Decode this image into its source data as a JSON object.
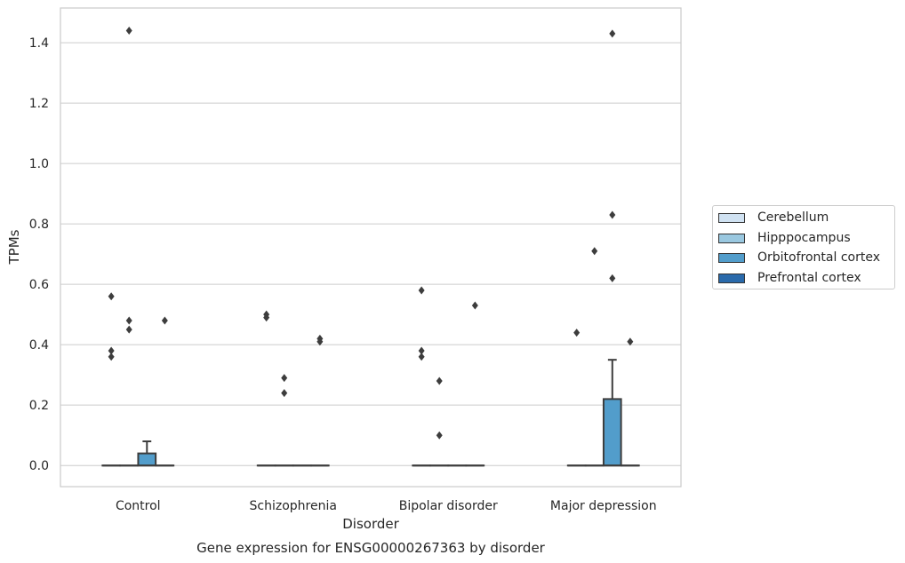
{
  "chart_data": {
    "type": "box",
    "title": "Gene expression for ENSG00000267363 by disorder",
    "xlabel": "Disorder",
    "ylabel": "TPMs",
    "ylim": [
      -0.07,
      1.515
    ],
    "yticks": [
      "0.0",
      "0.2",
      "0.4",
      "0.6",
      "0.8",
      "1.0",
      "1.2",
      "1.4"
    ],
    "ytick_values": [
      0.0,
      0.2,
      0.4,
      0.6,
      0.8,
      1.0,
      1.2,
      1.4
    ],
    "grid": true,
    "legend_placement": "center-right outside",
    "categories": [
      "Control",
      "Schizophrenia",
      "Bipolar disorder",
      "Major depression"
    ],
    "series": [
      {
        "name": "Cerebellum",
        "color": "#d0e2f2",
        "boxes": [
          {
            "q1": 0,
            "median": 0,
            "q3": 0,
            "whisker_low": 0,
            "whisker_high": 0,
            "outliers": [
              0.56,
              0.38,
              0.36
            ]
          },
          {
            "q1": 0,
            "median": 0,
            "q3": 0,
            "whisker_low": 0,
            "whisker_high": 0,
            "outliers": [
              0.5,
              0.49
            ]
          },
          {
            "q1": 0,
            "median": 0,
            "q3": 0,
            "whisker_low": 0,
            "whisker_high": 0,
            "outliers": [
              0.58,
              0.38,
              0.36
            ]
          },
          {
            "q1": 0,
            "median": 0,
            "q3": 0,
            "whisker_low": 0,
            "whisker_high": 0,
            "outliers": [
              0.44
            ]
          }
        ]
      },
      {
        "name": "Hipppocampus",
        "color": "#9ac8e0",
        "boxes": [
          {
            "q1": 0,
            "median": 0,
            "q3": 0,
            "whisker_low": 0,
            "whisker_high": 0,
            "outliers": [
              1.44,
              0.48,
              0.45
            ]
          },
          {
            "q1": 0,
            "median": 0,
            "q3": 0,
            "whisker_low": 0,
            "whisker_high": 0,
            "outliers": [
              0.29,
              0.24
            ]
          },
          {
            "q1": 0,
            "median": 0,
            "q3": 0,
            "whisker_low": 0,
            "whisker_high": 0,
            "outliers": [
              0.28,
              0.1
            ]
          },
          {
            "q1": 0,
            "median": 0,
            "q3": 0,
            "whisker_low": 0,
            "whisker_high": 0,
            "outliers": [
              0.71
            ]
          }
        ]
      },
      {
        "name": "Orbitofrontal cortex",
        "color": "#529dcb",
        "boxes": [
          {
            "q1": 0,
            "median": 0,
            "q3": 0.04,
            "whisker_low": 0,
            "whisker_high": 0.08,
            "outliers": []
          },
          {
            "q1": 0,
            "median": 0,
            "q3": 0,
            "whisker_low": 0,
            "whisker_high": 0,
            "outliers": []
          },
          {
            "q1": 0,
            "median": 0,
            "q3": 0,
            "whisker_low": 0,
            "whisker_high": 0,
            "outliers": []
          },
          {
            "q1": 0,
            "median": 0,
            "q3": 0.22,
            "whisker_low": 0,
            "whisker_high": 0.35,
            "outliers": [
              1.43,
              0.83,
              0.62
            ]
          }
        ]
      },
      {
        "name": "Prefrontal cortex",
        "color": "#2a6aab",
        "boxes": [
          {
            "q1": 0,
            "median": 0,
            "q3": 0,
            "whisker_low": 0,
            "whisker_high": 0,
            "outliers": [
              0.48
            ]
          },
          {
            "q1": 0,
            "median": 0,
            "q3": 0,
            "whisker_low": 0,
            "whisker_high": 0,
            "outliers": [
              0.42,
              0.41
            ]
          },
          {
            "q1": 0,
            "median": 0,
            "q3": 0,
            "whisker_low": 0,
            "whisker_high": 0,
            "outliers": [
              0.53
            ]
          },
          {
            "q1": 0,
            "median": 0,
            "q3": 0,
            "whisker_low": 0,
            "whisker_high": 0,
            "outliers": [
              0.41
            ]
          }
        ]
      }
    ]
  }
}
